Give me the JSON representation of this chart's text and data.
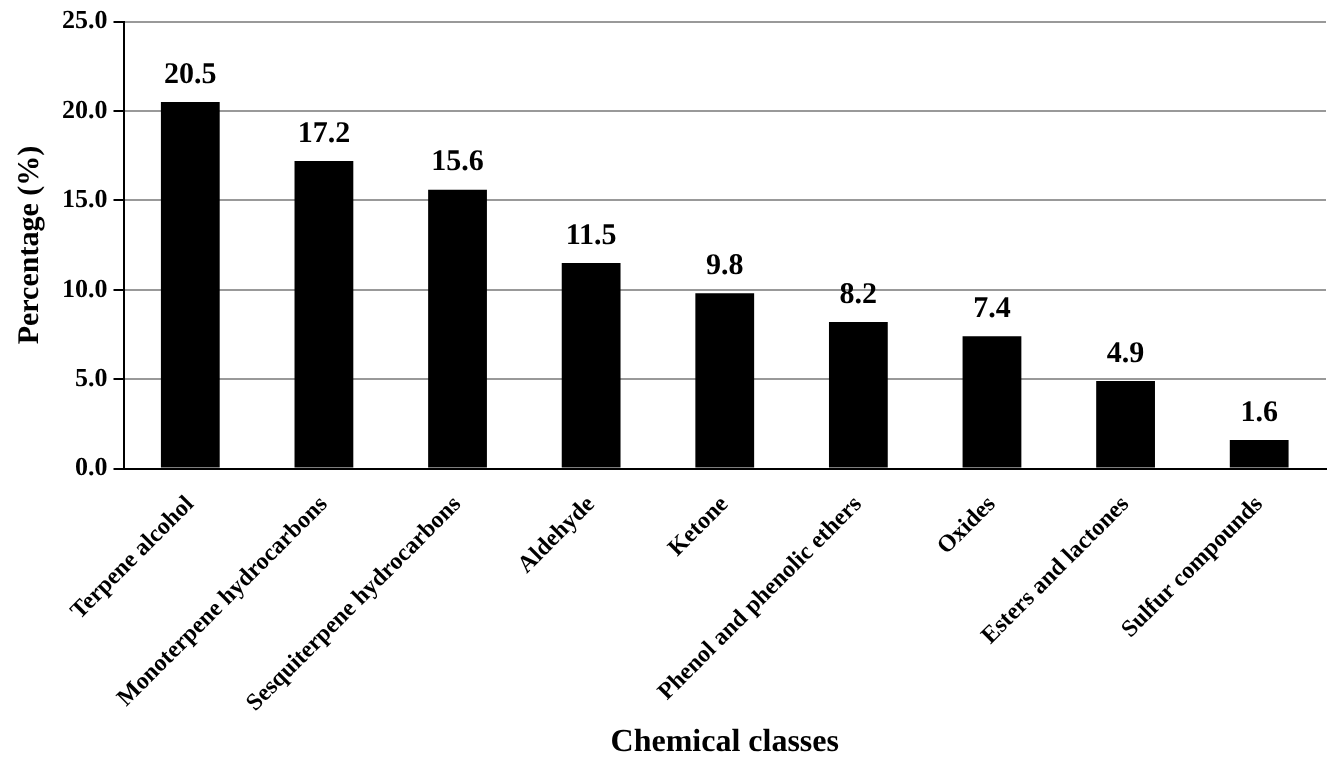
{
  "chart_data": {
    "type": "bar",
    "xlabel": "Chemical classes",
    "ylabel": "Percentage (%)",
    "categories": [
      "Terpene alcohol",
      "Monoterpene hydrocarbons",
      "Sesquiterpene hydrocarbons",
      "Aldehyde",
      "Ketone",
      "Phenol and phenolic ethers",
      "Oxides",
      "Esters and lactones",
      "Sulfur compounds"
    ],
    "values": [
      20.5,
      17.2,
      15.6,
      11.5,
      9.8,
      8.2,
      7.4,
      4.9,
      1.6
    ],
    "color": "#000000",
    "ylim": [
      0,
      25
    ],
    "yticks": [
      {
        "value": 0,
        "label": "0.0"
      },
      {
        "value": 5,
        "label": "5.0"
      },
      {
        "value": 10,
        "label": "10.0"
      },
      {
        "value": 15,
        "label": "15.0"
      },
      {
        "value": 20,
        "label": "20.0"
      },
      {
        "value": 25,
        "label": "25.0"
      }
    ],
    "grid": "y",
    "legend": false,
    "data_labels": true
  }
}
